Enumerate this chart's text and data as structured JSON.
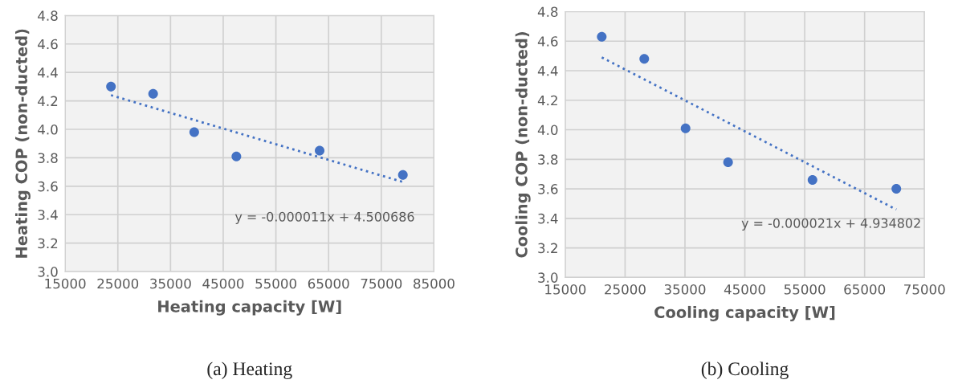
{
  "chart_data": [
    {
      "type": "scatter",
      "xlabel": "Heating capacity [W]",
      "ylabel": "Heating COP (non-ducted)",
      "xlim": [
        15000,
        85000
      ],
      "xticks": [
        15000,
        25000,
        35000,
        45000,
        55000,
        65000,
        75000,
        85000
      ],
      "ylim": [
        3.0,
        4.8
      ],
      "yticks": [
        {
          "value": 3.0,
          "label": "3.0"
        },
        {
          "value": 3.2,
          "label": "3.2"
        },
        {
          "value": 3.4,
          "label": "3.4"
        },
        {
          "value": 3.6,
          "label": "3.6"
        },
        {
          "value": 3.8,
          "label": "3.8"
        },
        {
          "value": 4.0,
          "label": "4.0"
        },
        {
          "value": 4.2,
          "label": "4.2"
        },
        {
          "value": 4.4,
          "label": "4.4"
        },
        {
          "value": 4.6,
          "label": "4.6"
        },
        {
          "value": 4.8,
          "label": "4.8"
        }
      ],
      "grid": true,
      "series": [
        {
          "marker": "circle",
          "color": "#4472c4",
          "x": [
            23700,
            31700,
            39500,
            47500,
            63300,
            79100
          ],
          "values": [
            4.3,
            4.25,
            3.98,
            3.81,
            3.85,
            3.68
          ]
        },
        {
          "type": "line",
          "color": "#4472c4",
          "line_style": "dotted",
          "x": [
            23700,
            79100
          ],
          "values": [
            4.24,
            3.63
          ]
        }
      ],
      "annotations": [
        "y = -0.000011x + 4.500686",
        "(a) Heating"
      ]
    },
    {
      "type": "scatter",
      "xlabel": "Cooling capacity [W]",
      "ylabel": "Cooling COP (non-ducted)",
      "xlim": [
        15000,
        75000
      ],
      "xticks": [
        15000,
        25000,
        35000,
        45000,
        55000,
        65000,
        75000
      ],
      "ylim": [
        3.0,
        4.8
      ],
      "yticks": [
        {
          "value": 3.0,
          "label": "3.0"
        },
        {
          "value": 3.2,
          "label": "3.2"
        },
        {
          "value": 3.4,
          "label": "3.4"
        },
        {
          "value": 3.6,
          "label": "3.6"
        },
        {
          "value": 3.8,
          "label": "3.8"
        },
        {
          "value": 4.0,
          "label": "4.0"
        },
        {
          "value": 4.2,
          "label": "4.2"
        },
        {
          "value": 4.4,
          "label": "4.4"
        },
        {
          "value": 4.6,
          "label": "4.6"
        },
        {
          "value": 4.8,
          "label": "4.8"
        }
      ],
      "grid": true,
      "series": [
        {
          "marker": "circle",
          "color": "#4472c4",
          "x": [
            21100,
            28200,
            35100,
            42200,
            56300,
            70300
          ],
          "values": [
            4.63,
            4.48,
            4.01,
            3.78,
            3.66,
            3.6
          ]
        },
        {
          "type": "line",
          "color": "#4472c4",
          "line_style": "dotted",
          "x": [
            21100,
            70300
          ],
          "values": [
            4.49,
            3.46
          ]
        }
      ],
      "annotations": [
        "y = -0.000021x + 4.934802",
        "(b) Cooling"
      ]
    }
  ]
}
